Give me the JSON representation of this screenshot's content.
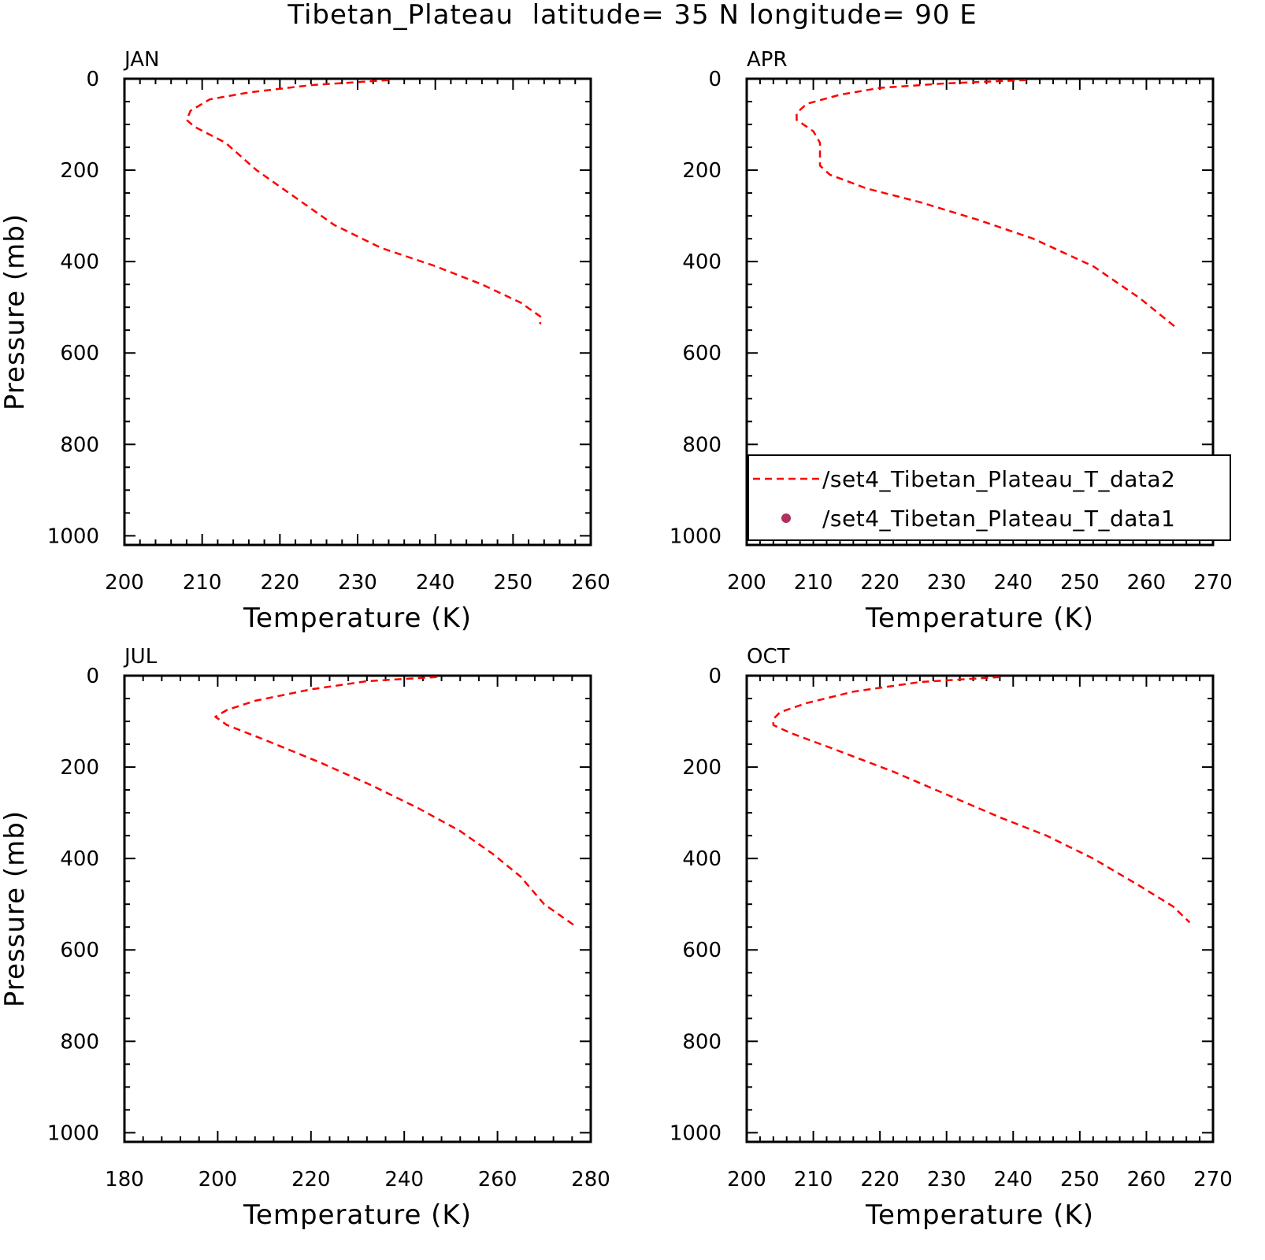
{
  "title": "Tibetan_Plateau  latitude= 35 N longitude= 90 E",
  "colors": {
    "model": "#ff0000",
    "obs": "#b03060",
    "axis": "#000000"
  },
  "legend": {
    "entries": [
      {
        "label": "/set4_Tibetan_Plateau_T_data2",
        "marker": "dashed-line"
      },
      {
        "label": "/set4_Tibetan_Plateau_T_data1",
        "marker": "dot"
      }
    ]
  },
  "chart_data": [
    {
      "type": "line",
      "panel": "JAN",
      "xlabel": "Temperature (K)",
      "ylabel": "Pressure (mb)",
      "xlim": [
        200,
        260
      ],
      "ylim": [
        1000,
        0
      ],
      "xticks": [
        200,
        210,
        220,
        230,
        240,
        250,
        260
      ],
      "yticks": [
        0,
        200,
        400,
        600,
        800,
        1000
      ],
      "series": [
        {
          "name": "/set4_Tibetan_Plateau_T_data2",
          "points": [
            [
              234,
              3
            ],
            [
              224,
              14
            ],
            [
              216,
              30
            ],
            [
              211,
              45
            ],
            [
              208.5,
              70
            ],
            [
              208,
              90
            ],
            [
              209,
              105
            ],
            [
              213,
              140
            ],
            [
              217,
              200
            ],
            [
              222,
              260
            ],
            [
              227,
              320
            ],
            [
              233,
              370
            ],
            [
              240,
              410
            ],
            [
              246,
              450
            ],
            [
              251,
              490
            ],
            [
              253.5,
              520
            ],
            [
              253.5,
              537
            ]
          ]
        }
      ]
    },
    {
      "type": "line",
      "panel": "APR",
      "xlabel": "Temperature (K)",
      "ylabel": "",
      "xlim": [
        200,
        270
      ],
      "ylim": [
        1000,
        0
      ],
      "xticks": [
        200,
        210,
        220,
        230,
        240,
        250,
        260,
        270
      ],
      "yticks": [
        0,
        200,
        400,
        600,
        800,
        1000
      ],
      "series": [
        {
          "name": "/set4_Tibetan_Plateau_T_data2",
          "points": [
            [
              242,
              3
            ],
            [
              230,
              10
            ],
            [
              220,
              20
            ],
            [
              214,
              35
            ],
            [
              209,
              55
            ],
            [
              207.5,
              75
            ],
            [
              207.5,
              90
            ],
            [
              210,
              115
            ],
            [
              211,
              140
            ],
            [
              211,
              190
            ],
            [
              212.5,
              210
            ],
            [
              218,
              240
            ],
            [
              226,
              270
            ],
            [
              235,
              310
            ],
            [
              243,
              350
            ],
            [
              252,
              410
            ],
            [
              259,
              480
            ],
            [
              264.5,
              545
            ]
          ]
        }
      ]
    },
    {
      "type": "line",
      "panel": "JUL",
      "xlabel": "Temperature (K)",
      "ylabel": "Pressure (mb)",
      "xlim": [
        180,
        280
      ],
      "ylim": [
        1000,
        0
      ],
      "xticks": [
        180,
        200,
        220,
        240,
        260,
        280
      ],
      "yticks": [
        0,
        200,
        400,
        600,
        800,
        1000
      ],
      "series": [
        {
          "name": "/set4_Tibetan_Plateau_T_data2",
          "points": [
            [
              247,
              3
            ],
            [
              232,
              12
            ],
            [
              220,
              30
            ],
            [
              208,
              55
            ],
            [
              202,
              75
            ],
            [
              199.5,
              90
            ],
            [
              202,
              108
            ],
            [
              210,
              140
            ],
            [
              222,
              190
            ],
            [
              233,
              240
            ],
            [
              243,
              290
            ],
            [
              252,
              340
            ],
            [
              259,
              390
            ],
            [
              265,
              440
            ],
            [
              270,
              500
            ],
            [
              277,
              550
            ]
          ]
        }
      ]
    },
    {
      "type": "line",
      "panel": "OCT",
      "xlabel": "Temperature (K)",
      "ylabel": "",
      "xlim": [
        200,
        270
      ],
      "ylim": [
        1000,
        0
      ],
      "xticks": [
        200,
        210,
        220,
        230,
        240,
        250,
        260,
        270
      ],
      "yticks": [
        0,
        200,
        400,
        600,
        800,
        1000
      ],
      "series": [
        {
          "name": "/set4_Tibetan_Plateau_T_data2",
          "points": [
            [
              238,
              3
            ],
            [
              226,
              14
            ],
            [
              216,
              35
            ],
            [
              209,
              60
            ],
            [
              205,
              80
            ],
            [
              204,
              95
            ],
            [
              204,
              108
            ],
            [
              206.5,
              125
            ],
            [
              213,
              160
            ],
            [
              222,
              210
            ],
            [
              230,
              260
            ],
            [
              238,
              310
            ],
            [
              245,
              350
            ],
            [
              252,
              400
            ],
            [
              259,
              460
            ],
            [
              264,
              505
            ],
            [
              266.5,
              540
            ]
          ]
        }
      ]
    }
  ]
}
